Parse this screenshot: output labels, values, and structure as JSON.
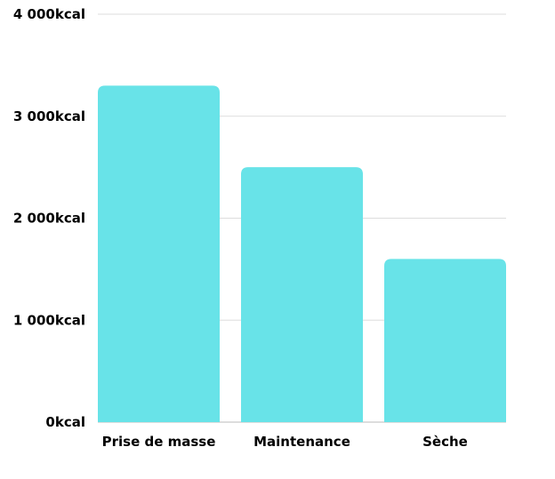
{
  "chart_data": {
    "type": "bar",
    "categories": [
      "Prise de masse",
      "Maintenance",
      "Sèche"
    ],
    "values": [
      3300,
      2500,
      1600
    ],
    "ylim": [
      0,
      4000
    ],
    "yticks": [
      0,
      1000,
      2000,
      3000,
      4000
    ],
    "ytick_labels": [
      "0kcal",
      "1 000kcal",
      "2 000kcal",
      "3 000kcal",
      "4 000kcal"
    ],
    "title": "",
    "xlabel": "",
    "ylabel": "",
    "grid": true,
    "legend": "none",
    "bar_color": "#68E3E8",
    "grid_color": "#DDDDDD"
  }
}
